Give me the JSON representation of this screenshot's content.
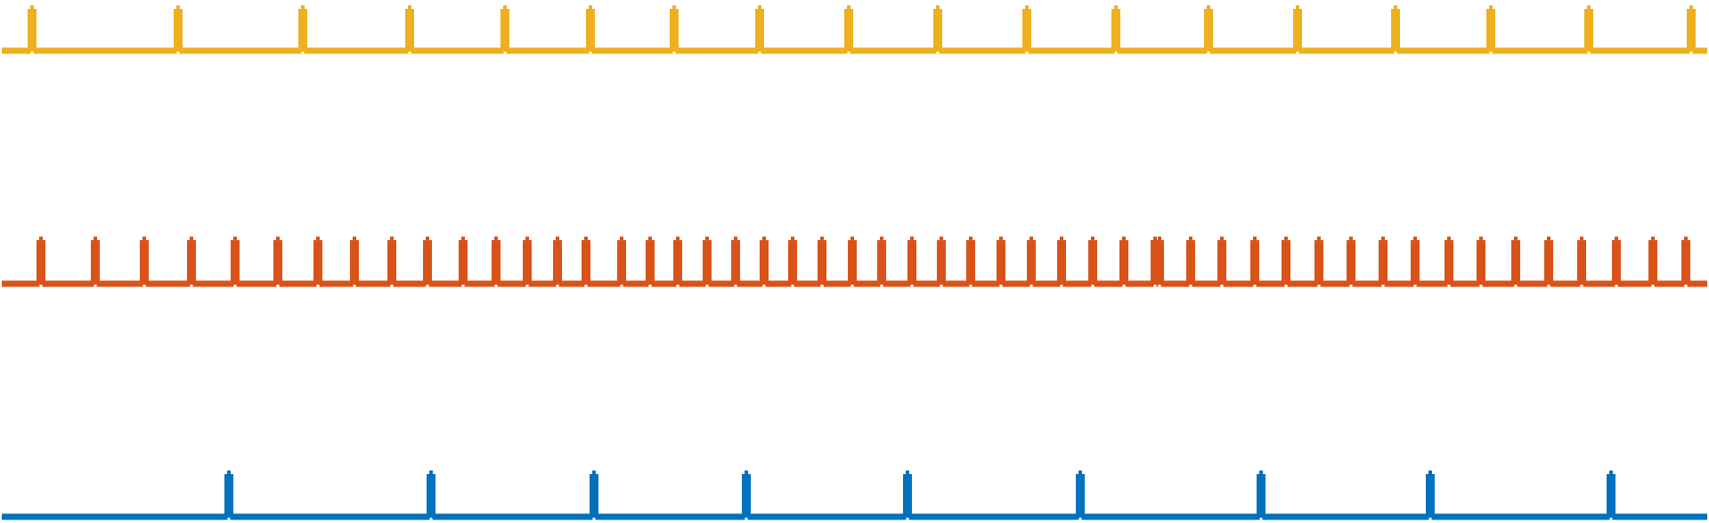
{
  "chart_data": {
    "type": "line",
    "title": "",
    "xlabel": "",
    "ylabel": "",
    "grid": false,
    "legend": "none",
    "xlim": [
      0,
      1919
    ],
    "series": [
      {
        "color": "#EDB120",
        "spikes": [
          36,
          200,
          340,
          460,
          567,
          663,
          757,
          853,
          953,
          1053,
          1153,
          1253,
          1357,
          1457,
          1567,
          1674,
          1784,
          1899
        ]
      },
      {
        "color": "#D95319",
        "spikes": [
          46,
          107,
          162,
          215,
          264,
          312,
          357,
          398,
          440,
          480,
          520,
          557,
          592,
          626,
          658,
          698,
          730,
          761,
          794,
          826,
          858,
          890,
          923,
          957,
          990,
          1024,
          1057,
          1090,
          1124,
          1158,
          1192,
          1227,
          1262,
          1297,
          1302,
          1337,
          1372,
          1409,
          1444,
          1481,
          1517,
          1553,
          1589,
          1627,
          1663,
          1702,
          1739,
          1776,
          1815,
          1856,
          1893
        ]
      },
      {
        "color": "#0072BD",
        "spikes": [
          257,
          484,
          667,
          838,
          1019,
          1213,
          1416,
          1606,
          1809
        ]
      }
    ]
  }
}
